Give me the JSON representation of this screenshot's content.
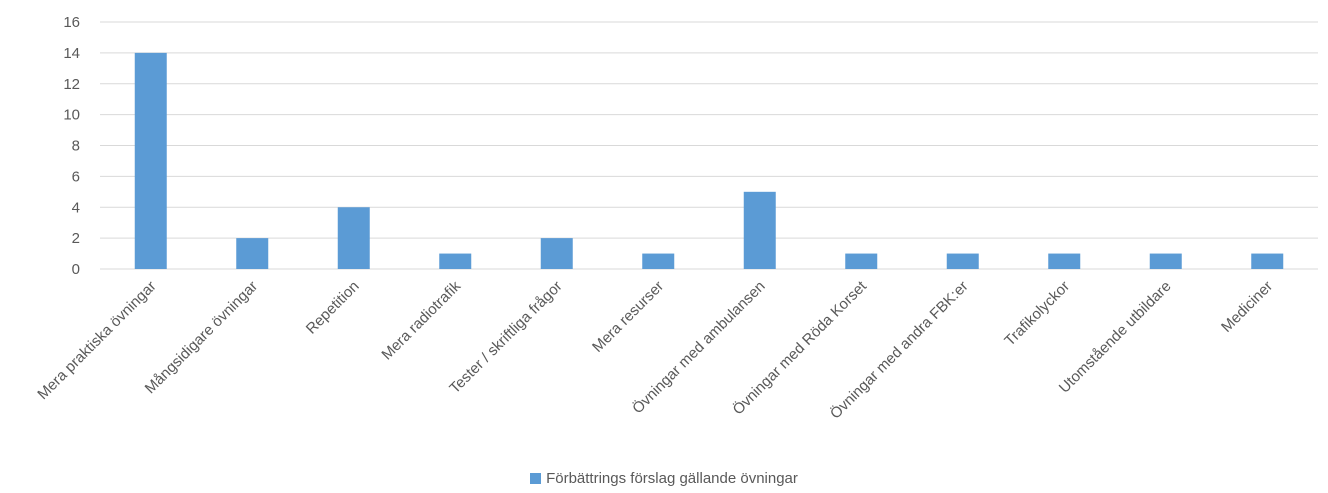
{
  "chart_data": {
    "type": "bar",
    "categories": [
      "Mera praktiska övningar",
      "Mångsidigare övningar",
      "Repetition",
      "Mera radiotrafik",
      "Tester / skriftliga frågor",
      "Mera resurser",
      "Övningar med ambulansen",
      "Övningar med Röda Korset",
      "Övningar med andra FBK:er",
      "Trafikolyckor",
      "Utomstående utbildare",
      "Mediciner"
    ],
    "series": [
      {
        "name": "Förbättrings förslag gällande övningar",
        "values": [
          14,
          2,
          4,
          1,
          2,
          1,
          5,
          1,
          1,
          1,
          1,
          1
        ]
      }
    ],
    "ylim": [
      0,
      16
    ],
    "yticks": [
      0,
      2,
      4,
      6,
      8,
      10,
      12,
      14,
      16
    ],
    "grid": true,
    "legend_position": "bottom",
    "colors": {
      "bar": "#5B9BD5",
      "grid": "#D9D9D9",
      "text": "#595959"
    }
  }
}
